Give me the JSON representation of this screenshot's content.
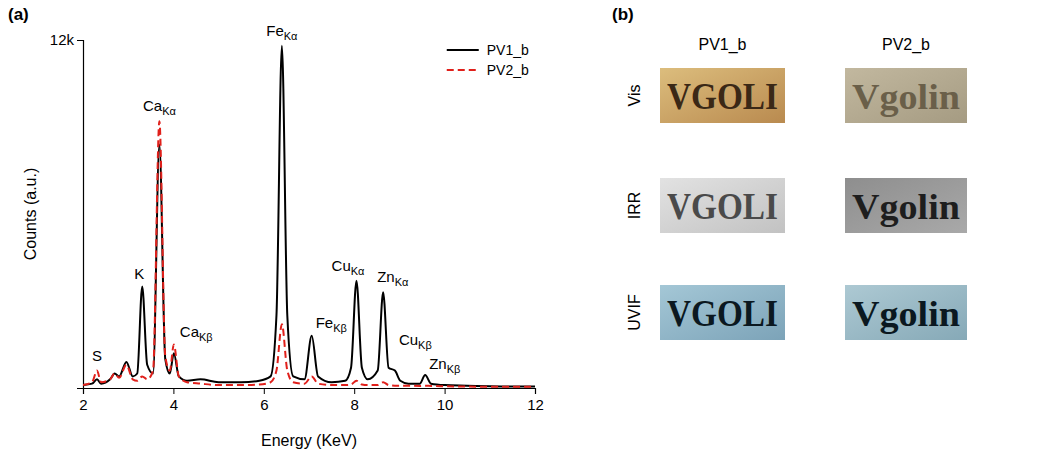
{
  "chart_data": {
    "type": "line",
    "x_label": "Energy (KeV)",
    "y_label": "Counts (a.u.)",
    "x": [
      2.0,
      2.2,
      2.31,
      2.4,
      2.6,
      2.7,
      2.8,
      2.96,
      3.1,
      3.2,
      3.31,
      3.42,
      3.55,
      3.69,
      3.82,
      3.92,
      4.01,
      4.12,
      4.3,
      4.6,
      5.0,
      5.5,
      5.9,
      6.15,
      6.28,
      6.4,
      6.52,
      6.65,
      6.9,
      7.06,
      7.2,
      7.5,
      7.8,
      7.93,
      8.05,
      8.17,
      8.3,
      8.52,
      8.64,
      8.76,
      8.9,
      9.02,
      9.2,
      9.45,
      9.57,
      9.7,
      10.0,
      10.5,
      11.0,
      11.5,
      12.0
    ],
    "series": [
      {
        "name": "PV1_b",
        "color": "#000000",
        "line_style": "solid",
        "values": [
          100,
          150,
          300,
          150,
          300,
          500,
          400,
          900,
          400,
          500,
          3500,
          800,
          500,
          8400,
          1000,
          500,
          1200,
          400,
          250,
          300,
          200,
          200,
          250,
          400,
          2500,
          11800,
          2500,
          400,
          300,
          1800,
          400,
          200,
          250,
          700,
          3700,
          700,
          300,
          600,
          3300,
          700,
          600,
          250,
          150,
          150,
          450,
          150,
          100,
          80,
          60,
          50,
          50
        ]
      },
      {
        "name": "PV2_b",
        "color": "#e0201b",
        "line_style": "dashed",
        "values": [
          100,
          200,
          600,
          200,
          300,
          500,
          350,
          800,
          300,
          250,
          400,
          300,
          600,
          9200,
          1100,
          600,
          1500,
          400,
          200,
          150,
          100,
          100,
          120,
          200,
          600,
          2200,
          600,
          200,
          150,
          400,
          150,
          100,
          100,
          120,
          250,
          120,
          100,
          100,
          200,
          100,
          80,
          80,
          80,
          70,
          80,
          70,
          60,
          50,
          40,
          40,
          40
        ]
      }
    ],
    "xlim": [
      2,
      12
    ],
    "ylim": [
      0,
      12000
    ],
    "xticks": [
      2,
      4,
      6,
      8,
      10,
      12
    ],
    "yticks": [
      {
        "value": 12000,
        "label": "12k"
      }
    ],
    "grid": false,
    "legend": "upper right",
    "annotations": [
      {
        "element": "S",
        "x": 2.31
      },
      {
        "element": "K",
        "x": 3.31
      },
      {
        "element": "Ca",
        "line": "Kα",
        "x": 3.69
      },
      {
        "element": "Ca",
        "line": "Kβ",
        "x": 4.01
      },
      {
        "element": "Fe",
        "line": "Kα",
        "x": 6.4
      },
      {
        "element": "Fe",
        "line": "Kβ",
        "x": 7.06
      },
      {
        "element": "Cu",
        "line": "Kα",
        "x": 8.05
      },
      {
        "element": "Zn",
        "line": "Kα",
        "x": 8.64
      },
      {
        "element": "Cu",
        "line": "Kβ",
        "x": 8.9
      },
      {
        "element": "Zn",
        "line": "Kβ",
        "x": 9.57
      }
    ]
  },
  "figure": {
    "panel_labels": [
      "(a)",
      "(b)"
    ],
    "panel_b": {
      "columns": [
        "PV1_b",
        "PV2_b"
      ],
      "rows": [
        "Vis",
        "IRR",
        "UVIF"
      ],
      "inscriptions": [
        "VGOLI",
        "Vgolin"
      ]
    }
  }
}
